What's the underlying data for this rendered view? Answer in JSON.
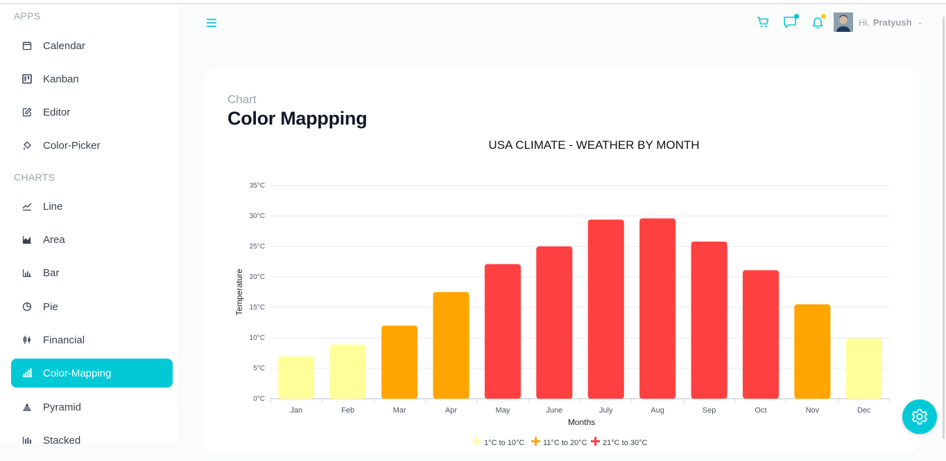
{
  "sidebar": {
    "apps_title": "APPS",
    "charts_title": "CHARTS",
    "apps_items": [
      {
        "label": "Calendar",
        "icon": "calendar-icon"
      },
      {
        "label": "Kanban",
        "icon": "kanban-icon"
      },
      {
        "label": "Editor",
        "icon": "edit-icon"
      },
      {
        "label": "Color-Picker",
        "icon": "paint-bucket-icon"
      }
    ],
    "chart_items": [
      {
        "label": "Line",
        "icon": "line-chart-icon"
      },
      {
        "label": "Area",
        "icon": "area-chart-icon"
      },
      {
        "label": "Bar",
        "icon": "bar-chart-icon"
      },
      {
        "label": "Pie",
        "icon": "pie-chart-icon"
      },
      {
        "label": "Financial",
        "icon": "financial-icon"
      },
      {
        "label": "Color-Mapping",
        "icon": "color-mapping-icon",
        "active": true
      },
      {
        "label": "Pyramid",
        "icon": "pyramid-icon"
      },
      {
        "label": "Stacked",
        "icon": "stacked-chart-icon"
      }
    ]
  },
  "header": {
    "greeting": "Hi,",
    "user_name": "Pratyush"
  },
  "card": {
    "breadcrumb": "Chart",
    "title": "Color Mappping"
  },
  "colors": {
    "accent": "#03c9d7",
    "range_low": "#FFFF99",
    "range_mid": "#FFA500",
    "range_high": "#FF4040"
  },
  "chart_data": {
    "type": "bar",
    "title": "USA CLIMATE - WEATHER BY MONTH",
    "xlabel": "Months",
    "ylabel": "Temperature",
    "categories": [
      "Jan",
      "Feb",
      "Mar",
      "Apr",
      "May",
      "June",
      "July",
      "Aug",
      "Sep",
      "Oct",
      "Nov",
      "Dec"
    ],
    "values": [
      6.96,
      8.9,
      12,
      17.5,
      22.1,
      25,
      29.4,
      29.6,
      25.8,
      21.1,
      15.5,
      9.9
    ],
    "yticks": [
      "0°C",
      "5°C",
      "10°C",
      "15°C",
      "20°C",
      "25°C",
      "30°C",
      "35°C"
    ],
    "ylim": [
      0,
      35
    ],
    "grid": true,
    "legend_position": "bottom",
    "color_ranges": [
      {
        "label": "1°C to 10°C",
        "from": 1,
        "to": 10,
        "color": "#FFFF99"
      },
      {
        "label": "11°C to 20°C",
        "from": 11,
        "to": 20,
        "color": "#FFA500"
      },
      {
        "label": "21°C to 30°C",
        "from": 21,
        "to": 30,
        "color": "#FF4040"
      }
    ]
  }
}
